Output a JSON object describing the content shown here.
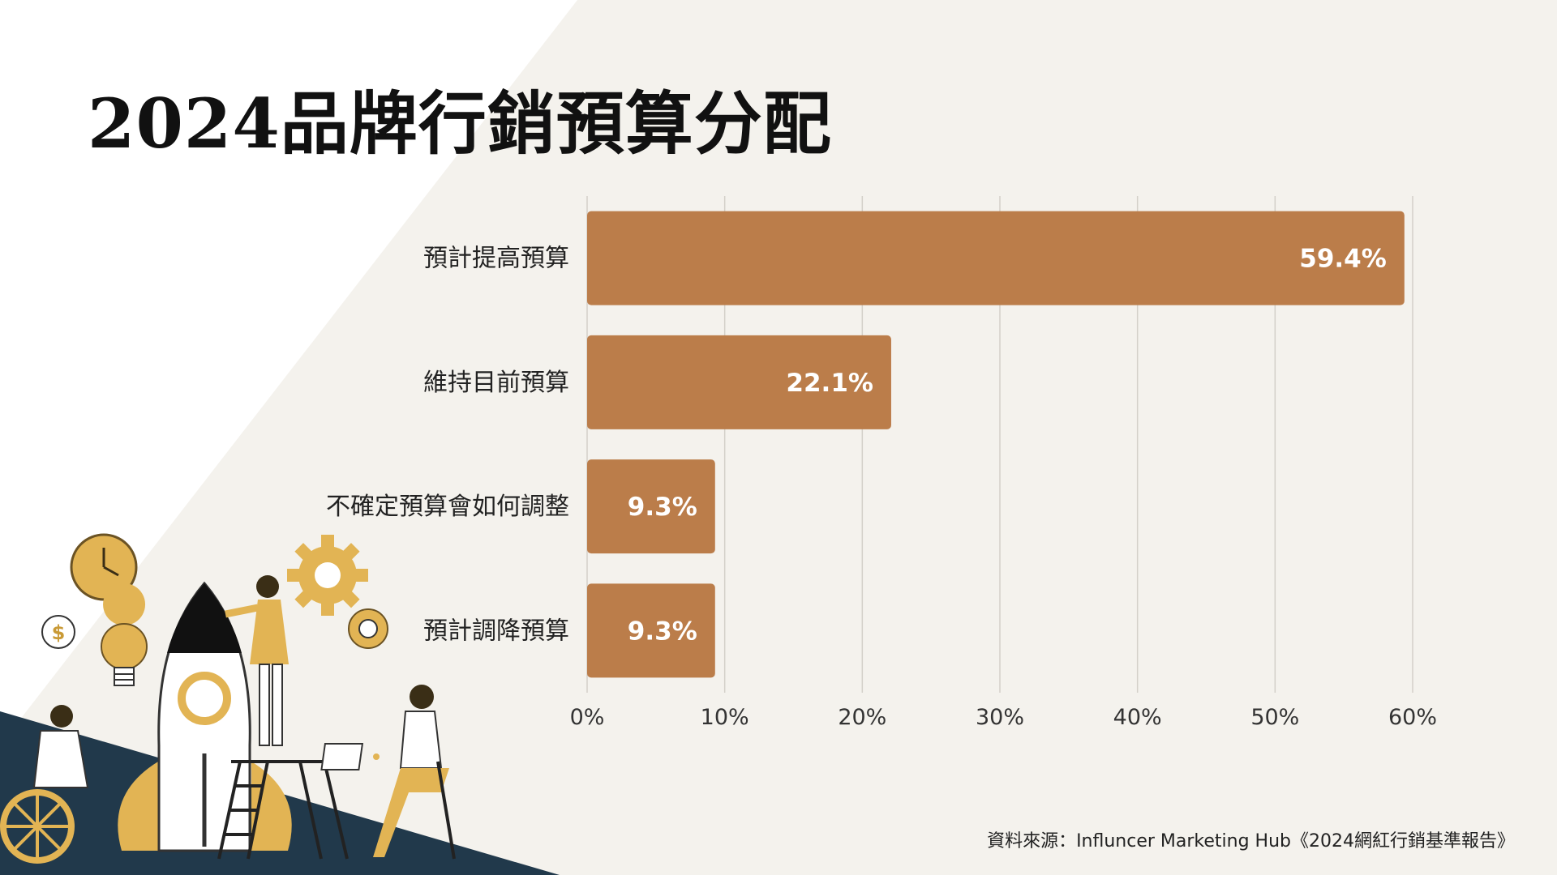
{
  "title": "2024品牌行銷預算分配",
  "source": "資料來源：Influncer Marketing Hub《2024網紅行銷基準報告》",
  "colors": {
    "background": "#f4f2ed",
    "bar": "#bb7d4a",
    "grid": "#d3d0c9",
    "navy": "#21394b",
    "mustard": "#e2b454"
  },
  "chart_data": {
    "type": "bar",
    "orientation": "horizontal",
    "title": "2024品牌行銷預算分配",
    "categories": [
      "預計提高預算",
      "維持目前預算",
      "不確定預算會如何調整",
      "預計調降預算"
    ],
    "values": [
      59.4,
      22.1,
      9.3,
      9.3
    ],
    "value_labels": [
      "59.4%",
      "22.1%",
      "9.3%",
      "9.3%"
    ],
    "xlim": [
      0,
      60
    ],
    "xticks": [
      0,
      10,
      20,
      30,
      40,
      50,
      60
    ],
    "xtick_labels": [
      "0%",
      "10%",
      "20%",
      "30%",
      "40%",
      "50%",
      "60%"
    ],
    "grid": "vertical",
    "legend": "none"
  },
  "illustration": {
    "icons": [
      "clock-icon",
      "dollar-coin-icon",
      "lightbulb-icon",
      "gear-icon",
      "small-gear-icon",
      "rocket-icon",
      "ladder-icon",
      "laptop-icon"
    ],
    "coin_symbol": "$"
  }
}
